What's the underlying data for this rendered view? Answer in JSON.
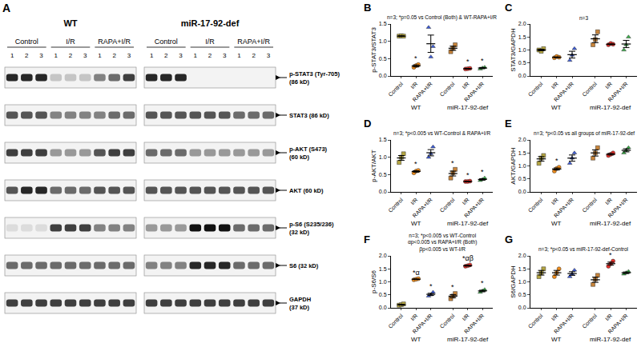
{
  "blot": {
    "panel": "A",
    "blots": [
      {
        "title": "WT",
        "groups": [
          {
            "name": "Control",
            "lanes": [
              "1",
              "2",
              "3"
            ]
          },
          {
            "name": "I/R",
            "lanes": [
              "1",
              "2",
              "3"
            ]
          },
          {
            "name": "RAPA+I/R",
            "lanes": [
              "1",
              "2",
              "3"
            ]
          }
        ]
      },
      {
        "title": "miR-17-92-def",
        "groups": [
          {
            "name": "Control",
            "lanes": [
              "1",
              "2",
              "3"
            ]
          },
          {
            "name": "I/R",
            "lanes": [
              "1",
              "2",
              "3"
            ]
          },
          {
            "name": "RAPA+I/R",
            "lanes": [
              "1",
              "2",
              "3"
            ]
          }
        ]
      }
    ],
    "rows": [
      {
        "lines": [
          "p-STAT3 (Tyr-705)",
          "(86 kD)"
        ],
        "bands": [
          [
            0.9,
            0.9,
            0.9,
            0.2,
            0.2,
            0.2,
            0.5,
            0.6,
            0.8
          ],
          [
            0.9,
            0.9,
            0.9,
            0,
            0,
            0,
            0,
            0,
            0
          ]
        ]
      },
      {
        "lines": [
          "STAT3 (86 kD)"
        ],
        "bands": [
          [
            0.7,
            0.7,
            0.7,
            0.5,
            0.5,
            0.5,
            0.5,
            0.6,
            0.6
          ],
          [
            0.7,
            0.7,
            0.7,
            0.7,
            0.7,
            0.7,
            0.6,
            0.6,
            0.6
          ]
        ]
      },
      {
        "lines": [
          "p-AKT (S473)",
          "(60 kD)"
        ],
        "bands": [
          [
            0.8,
            0.8,
            0.8,
            0.4,
            0.4,
            0.4,
            0.7,
            0.8,
            0.8
          ],
          [
            0.6,
            0.6,
            0.6,
            0.4,
            0.4,
            0.4,
            0.4,
            0.4,
            0.4
          ]
        ]
      },
      {
        "lines": [
          "AKT (60 kD)"
        ],
        "bands": [
          [
            0.7,
            0.9,
            0.9,
            0.6,
            0.6,
            0.6,
            0.7,
            0.7,
            0.7
          ],
          [
            0.7,
            0.7,
            0.7,
            0.7,
            0.7,
            0.7,
            0.7,
            0.7,
            0.7
          ]
        ]
      },
      {
        "lines": [
          "p-S6 (S235/236)",
          "(32 kD)"
        ],
        "bands": [
          [
            0.1,
            0.1,
            0.1,
            0.8,
            0.8,
            0.8,
            0.5,
            0.5,
            0.5
          ],
          [
            0.4,
            0.4,
            0.4,
            1,
            1,
            1,
            0.6,
            0.6,
            0.6
          ]
        ]
      },
      {
        "lines": [
          "S6 (32 kD)"
        ],
        "bands": [
          [
            0.6,
            0.6,
            0.6,
            0.6,
            0.6,
            0.6,
            0.6,
            0.6,
            0.6
          ],
          [
            0.5,
            0.5,
            0.5,
            0.9,
            0.9,
            0.9,
            0.6,
            0.6,
            0.6
          ]
        ]
      },
      {
        "lines": [
          "GAPDH",
          "(37 kD)"
        ],
        "bands": [
          [
            0.8,
            0.8,
            0.8,
            0.8,
            0.8,
            0.8,
            0.8,
            0.8,
            0.8
          ],
          [
            0.8,
            0.8,
            0.8,
            0.8,
            0.8,
            0.8,
            0.8,
            0.8,
            0.8
          ]
        ]
      }
    ]
  },
  "chart_data": [
    {
      "panel": "B",
      "type": "scatter",
      "title": [
        "n=3; *p=0.05 vs Control (Both) & WT-RAPA+I/R"
      ],
      "y_label": "p-STAT3/STAT3",
      "ylim": [
        0,
        1.5
      ],
      "yticks": [
        {
          "value": 0,
          "label": "0.0"
        },
        0.5,
        {
          "value": 1,
          "label": "1.0"
        },
        1.5
      ],
      "series": [
        {
          "name": "Control",
          "group": "WT",
          "color": "#b5a642",
          "marker": "square",
          "values": [
            1.15,
            1.16,
            1.15
          ],
          "mean": 1.15,
          "error": 0.01
        },
        {
          "name": "I/R",
          "group": "WT",
          "color": "#f28e1c",
          "marker": "circle",
          "values": [
            0.25,
            0.3,
            0.33
          ],
          "mean": 0.29,
          "error": 0.03,
          "label": "*"
        },
        {
          "name": "RAPA+I/R",
          "group": "WT",
          "color": "#3b5bdb",
          "marker": "triangle-up",
          "values": [
            1.4,
            0.55,
            0.85
          ],
          "mean": 0.93,
          "error": 0.25
        },
        {
          "name": "Control",
          "group": "miR-17-92-def",
          "color": "#c8843a",
          "marker": "square",
          "values": [
            0.7,
            0.8,
            0.9
          ],
          "mean": 0.8,
          "error": 0.06
        },
        {
          "name": "I/R",
          "group": "miR-17-92-def",
          "color": "#e8312b",
          "marker": "circle",
          "values": [
            0.2,
            0.21,
            0.22
          ],
          "mean": 0.21,
          "error": 0.01,
          "label": "*"
        },
        {
          "name": "RAPA+I/R",
          "group": "miR-17-92-def",
          "color": "#3cb44b",
          "marker": "triangle-up",
          "values": [
            0.2,
            0.23,
            0.25
          ],
          "mean": 0.23,
          "error": 0.015,
          "label": "*"
        }
      ]
    },
    {
      "panel": "C",
      "type": "scatter",
      "title": [
        "n=3"
      ],
      "y_label": "STAT3/GAPDH",
      "ylim": [
        0,
        2
      ],
      "yticks": [
        {
          "value": 0,
          "label": "0.0"
        },
        0.5,
        {
          "value": 1,
          "label": "1.0"
        },
        1.5,
        {
          "value": 2,
          "label": "2.0"
        }
      ],
      "series": [
        {
          "name": "Control",
          "group": "WT",
          "color": "#b5a642",
          "marker": "square",
          "values": [
            1.0,
            0.95,
            1.05
          ],
          "mean": 1.0,
          "error": 0.03
        },
        {
          "name": "I/R",
          "group": "WT",
          "color": "#f28e1c",
          "marker": "circle",
          "values": [
            0.7,
            0.75,
            0.72
          ],
          "mean": 0.72,
          "error": 0.015
        },
        {
          "name": "RAPA+I/R",
          "group": "WT",
          "color": "#3b5bdb",
          "marker": "triangle-up",
          "values": [
            0.6,
            0.8,
            1.05
          ],
          "mean": 0.82,
          "error": 0.13
        },
        {
          "name": "Control",
          "group": "miR-17-92-def",
          "color": "#c8843a",
          "marker": "square",
          "values": [
            1.2,
            1.4,
            1.7
          ],
          "mean": 1.43,
          "error": 0.15
        },
        {
          "name": "I/R",
          "group": "miR-17-92-def",
          "color": "#e8312b",
          "marker": "circle",
          "values": [
            1.2,
            1.25,
            1.22
          ],
          "mean": 1.22,
          "error": 0.015
        },
        {
          "name": "RAPA+I/R",
          "group": "miR-17-92-def",
          "color": "#3cb44b",
          "marker": "triangle-up",
          "values": [
            1.0,
            1.2,
            1.5
          ],
          "mean": 1.23,
          "error": 0.14
        }
      ]
    },
    {
      "panel": "D",
      "type": "scatter",
      "title": [
        "n=3; *p<0.005 vs WT-Control & RAPA+I/R"
      ],
      "y_label": "p-AKT/AKT",
      "ylim": [
        0,
        1.5
      ],
      "yticks": [
        {
          "value": 0,
          "label": "0.0"
        },
        0.5,
        {
          "value": 1,
          "label": "1.0"
        },
        1.5
      ],
      "series": [
        {
          "name": "Control",
          "group": "WT",
          "color": "#b5a642",
          "marker": "square",
          "values": [
            0.85,
            1.0,
            1.1
          ],
          "mean": 0.98,
          "error": 0.07
        },
        {
          "name": "I/R",
          "group": "WT",
          "color": "#f28e1c",
          "marker": "circle",
          "values": [
            0.55,
            0.6,
            0.62
          ],
          "mean": 0.59,
          "error": 0.02,
          "label": "*"
        },
        {
          "name": "RAPA+I/R",
          "group": "WT",
          "color": "#3b5bdb",
          "marker": "triangle-up",
          "values": [
            1.0,
            1.1,
            1.3
          ],
          "mean": 1.13,
          "error": 0.09
        },
        {
          "name": "Control",
          "group": "miR-17-92-def",
          "color": "#c8843a",
          "marker": "square",
          "values": [
            0.4,
            0.55,
            0.65
          ],
          "mean": 0.53,
          "error": 0.07,
          "label": "*"
        },
        {
          "name": "I/R",
          "group": "miR-17-92-def",
          "color": "#e8312b",
          "marker": "circle",
          "values": [
            0.3,
            0.3,
            0.31
          ],
          "mean": 0.3,
          "error": 0.003,
          "label": "*"
        },
        {
          "name": "RAPA+I/R",
          "group": "miR-17-92-def",
          "color": "#3cb44b",
          "marker": "triangle-up",
          "values": [
            0.33,
            0.36,
            0.4
          ],
          "mean": 0.36,
          "error": 0.02,
          "label": "*"
        }
      ]
    },
    {
      "panel": "E",
      "type": "scatter",
      "title": [
        "n=3; *p<0.05 vs all groups of miR-17-92-def"
      ],
      "y_label": "AKT/GAPDH",
      "ylim": [
        0,
        2
      ],
      "yticks": [
        {
          "value": 0,
          "label": "0.0"
        },
        0.5,
        {
          "value": 1,
          "label": "1.0"
        },
        1.5,
        {
          "value": 2,
          "label": "2.0"
        }
      ],
      "series": [
        {
          "name": "Control",
          "group": "WT",
          "color": "#b5a642",
          "marker": "square",
          "values": [
            1.1,
            1.3,
            1.4
          ],
          "mean": 1.27,
          "error": 0.09
        },
        {
          "name": "I/R",
          "group": "WT",
          "color": "#f28e1c",
          "marker": "circle",
          "values": [
            0.8,
            0.9,
            0.95
          ],
          "mean": 0.88,
          "error": 0.04,
          "label": "*"
        },
        {
          "name": "RAPA+I/R",
          "group": "WT",
          "color": "#3b5bdb",
          "marker": "triangle-up",
          "values": [
            1.1,
            1.3,
            1.5
          ],
          "mean": 1.3,
          "error": 0.12
        },
        {
          "name": "Control",
          "group": "miR-17-92-def",
          "color": "#c8843a",
          "marker": "square",
          "values": [
            1.3,
            1.5,
            1.7
          ],
          "mean": 1.5,
          "error": 0.12
        },
        {
          "name": "I/R",
          "group": "miR-17-92-def",
          "color": "#e8312b",
          "marker": "circle",
          "values": [
            1.4,
            1.45,
            1.5
          ],
          "mean": 1.45,
          "error": 0.03
        },
        {
          "name": "RAPA+I/R",
          "group": "miR-17-92-def",
          "color": "#3cb44b",
          "marker": "triangle-up",
          "values": [
            1.5,
            1.6,
            1.7
          ],
          "mean": 1.6,
          "error": 0.06
        }
      ]
    },
    {
      "panel": "F",
      "type": "scatter",
      "title": [
        "n=3; *p<0.005 vs WT-Control",
        "αp<0.005 vs RAPA+I/R (Both)",
        "βp<0.005 vs WT-I/R"
      ],
      "y_label": "p-S6/S6",
      "ylim": [
        0,
        2
      ],
      "yticks": [
        {
          "value": 0,
          "label": "0.0"
        },
        0.5,
        {
          "value": 1,
          "label": "1.0"
        },
        1.5,
        {
          "value": 2,
          "label": "2.0"
        }
      ],
      "series": [
        {
          "name": "Control",
          "group": "WT",
          "color": "#b5a642",
          "marker": "square",
          "values": [
            0.1,
            0.12,
            0.15
          ],
          "mean": 0.12,
          "error": 0.015
        },
        {
          "name": "I/R",
          "group": "WT",
          "color": "#f28e1c",
          "marker": "circle",
          "values": [
            1.08,
            1.1,
            1.12
          ],
          "mean": 1.1,
          "error": 0.01,
          "label": "*α"
        },
        {
          "name": "RAPA+I/R",
          "group": "WT",
          "color": "#3b5bdb",
          "marker": "triangle-up",
          "values": [
            0.45,
            0.5,
            0.6
          ],
          "mean": 0.52,
          "error": 0.04,
          "label": "*"
        },
        {
          "name": "Control",
          "group": "miR-17-92-def",
          "color": "#c8843a",
          "marker": "square",
          "values": [
            0.35,
            0.45,
            0.55
          ],
          "mean": 0.45,
          "error": 0.06,
          "label": "*"
        },
        {
          "name": "I/R",
          "group": "miR-17-92-def",
          "color": "#e8312b",
          "marker": "circle",
          "values": [
            1.6,
            1.62,
            1.65
          ],
          "mean": 1.62,
          "error": 0.015,
          "label": "*αβ"
        },
        {
          "name": "RAPA+I/R",
          "group": "miR-17-92-def",
          "color": "#3cb44b",
          "marker": "triangle-up",
          "values": [
            0.6,
            0.65,
            0.7
          ],
          "mean": 0.65,
          "error": 0.03,
          "label": "*"
        }
      ]
    },
    {
      "panel": "G",
      "type": "scatter",
      "title": [
        "n=3; *p<0.05 vs miR-17-92-def-Control"
      ],
      "y_label": "S6/GAPDH",
      "ylim": [
        0,
        2
      ],
      "yticks": [
        {
          "value": 0,
          "label": "0.0"
        },
        0.5,
        {
          "value": 1,
          "label": "1.0"
        },
        1.5,
        {
          "value": 2,
          "label": "2.0"
        }
      ],
      "series": [
        {
          "name": "Control",
          "group": "WT",
          "color": "#b5a642",
          "marker": "square",
          "values": [
            1.2,
            1.35,
            1.5
          ],
          "mean": 1.35,
          "error": 0.09
        },
        {
          "name": "I/R",
          "group": "WT",
          "color": "#f28e1c",
          "marker": "circle",
          "values": [
            1.2,
            1.35,
            1.5
          ],
          "mean": 1.35,
          "error": 0.09
        },
        {
          "name": "RAPA+I/R",
          "group": "WT",
          "color": "#3b5bdb",
          "marker": "triangle-up",
          "values": [
            1.2,
            1.3,
            1.45
          ],
          "mean": 1.32,
          "error": 0.07
        },
        {
          "name": "Control",
          "group": "miR-17-92-def",
          "color": "#c8843a",
          "marker": "square",
          "values": [
            0.9,
            1.1,
            1.25
          ],
          "mean": 1.08,
          "error": 0.1
        },
        {
          "name": "I/R",
          "group": "miR-17-92-def",
          "color": "#e8312b",
          "marker": "circle",
          "values": [
            1.6,
            1.7,
            1.8
          ],
          "mean": 1.7,
          "error": 0.06,
          "label": "*"
        },
        {
          "name": "RAPA+I/R",
          "group": "miR-17-92-def",
          "color": "#3cb44b",
          "marker": "triangle-up",
          "values": [
            1.3,
            1.35,
            1.4
          ],
          "mean": 1.35,
          "error": 0.03
        }
      ]
    }
  ]
}
